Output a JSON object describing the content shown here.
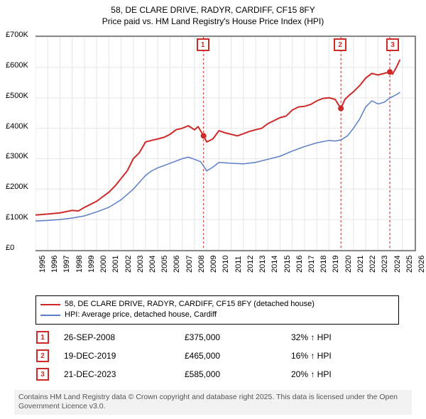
{
  "title_line1": "58, DE CLARE DRIVE, RADYR, CARDIFF, CF15 8FY",
  "title_line2": "Price paid vs. HM Land Registry's House Price Index (HPI)",
  "chart": {
    "type": "line",
    "background_color": "#ffffff",
    "grid_color": "#e6e6e6",
    "axis_color": "#888888",
    "font_size_axis": 11,
    "xlim": [
      1995,
      2026
    ],
    "ylim": [
      0,
      700000
    ],
    "y_ticks": [
      0,
      100000,
      200000,
      300000,
      400000,
      500000,
      600000,
      700000
    ],
    "y_tick_labels": [
      "£0",
      "£100K",
      "£200K",
      "£300K",
      "£400K",
      "£500K",
      "£600K",
      "£700K"
    ],
    "x_ticks": [
      1995,
      1996,
      1997,
      1998,
      1999,
      2000,
      2001,
      2002,
      2003,
      2004,
      2005,
      2006,
      2007,
      2008,
      2009,
      2010,
      2011,
      2012,
      2013,
      2014,
      2015,
      2016,
      2017,
      2018,
      2019,
      2020,
      2021,
      2022,
      2023,
      2024,
      2025,
      2026
    ],
    "event_line_color": "#cf2a2a",
    "event_line_dash": "3,3",
    "events": [
      {
        "id": "1",
        "x": 2008.74,
        "label_offset_x": -2
      },
      {
        "id": "2",
        "x": 2019.97,
        "label_offset_x": -2
      },
      {
        "id": "3",
        "x": 2023.97,
        "label_offset_x": 3
      }
    ],
    "series": [
      {
        "name": "property",
        "label": "58, DE CLARE DRIVE, RADYR, CARDIFF, CF15 8FY (detached house)",
        "color": "#cf2a2a",
        "line_width": 2,
        "points": [
          [
            1995,
            115000
          ],
          [
            1996,
            118000
          ],
          [
            1997,
            122000
          ],
          [
            1998,
            130000
          ],
          [
            1998.5,
            128000
          ],
          [
            1999,
            140000
          ],
          [
            2000,
            160000
          ],
          [
            2000.5,
            175000
          ],
          [
            2001,
            190000
          ],
          [
            2001.5,
            210000
          ],
          [
            2002,
            235000
          ],
          [
            2002.5,
            260000
          ],
          [
            2003,
            300000
          ],
          [
            2003.5,
            320000
          ],
          [
            2004,
            355000
          ],
          [
            2004.5,
            360000
          ],
          [
            2005,
            365000
          ],
          [
            2005.5,
            370000
          ],
          [
            2006,
            380000
          ],
          [
            2006.5,
            395000
          ],
          [
            2007,
            400000
          ],
          [
            2007.5,
            408000
          ],
          [
            2008,
            395000
          ],
          [
            2008.3,
            405000
          ],
          [
            2008.74,
            375000
          ],
          [
            2009,
            355000
          ],
          [
            2009.5,
            365000
          ],
          [
            2010,
            392000
          ],
          [
            2010.5,
            385000
          ],
          [
            2011,
            380000
          ],
          [
            2011.5,
            375000
          ],
          [
            2012,
            382000
          ],
          [
            2012.5,
            390000
          ],
          [
            2013,
            395000
          ],
          [
            2013.5,
            400000
          ],
          [
            2014,
            415000
          ],
          [
            2014.5,
            425000
          ],
          [
            2015,
            435000
          ],
          [
            2015.5,
            440000
          ],
          [
            2016,
            460000
          ],
          [
            2016.5,
            470000
          ],
          [
            2017,
            472000
          ],
          [
            2017.5,
            478000
          ],
          [
            2018,
            490000
          ],
          [
            2018.5,
            498000
          ],
          [
            2019,
            500000
          ],
          [
            2019.5,
            495000
          ],
          [
            2019.97,
            465000
          ],
          [
            2020.3,
            495000
          ],
          [
            2020.7,
            510000
          ],
          [
            2021,
            520000
          ],
          [
            2021.5,
            540000
          ],
          [
            2022,
            565000
          ],
          [
            2022.5,
            580000
          ],
          [
            2023,
            575000
          ],
          [
            2023.5,
            580000
          ],
          [
            2023.97,
            585000
          ],
          [
            2024.2,
            578000
          ],
          [
            2024.5,
            600000
          ],
          [
            2024.8,
            625000
          ]
        ]
      },
      {
        "name": "hpi",
        "label": "HPI: Average price, detached house, Cardiff",
        "color": "#5b7fc7",
        "line_width": 1.5,
        "points": [
          [
            1995,
            95000
          ],
          [
            1996,
            97000
          ],
          [
            1997,
            100000
          ],
          [
            1998,
            105000
          ],
          [
            1999,
            112000
          ],
          [
            2000,
            125000
          ],
          [
            2001,
            140000
          ],
          [
            2002,
            165000
          ],
          [
            2003,
            200000
          ],
          [
            2004,
            245000
          ],
          [
            2004.5,
            260000
          ],
          [
            2005,
            270000
          ],
          [
            2006,
            285000
          ],
          [
            2007,
            300000
          ],
          [
            2007.5,
            305000
          ],
          [
            2008,
            298000
          ],
          [
            2008.5,
            290000
          ],
          [
            2009,
            260000
          ],
          [
            2009.5,
            272000
          ],
          [
            2010,
            288000
          ],
          [
            2011,
            285000
          ],
          [
            2012,
            283000
          ],
          [
            2013,
            288000
          ],
          [
            2014,
            298000
          ],
          [
            2015,
            308000
          ],
          [
            2016,
            325000
          ],
          [
            2017,
            340000
          ],
          [
            2018,
            352000
          ],
          [
            2019,
            360000
          ],
          [
            2019.5,
            358000
          ],
          [
            2020,
            362000
          ],
          [
            2020.5,
            375000
          ],
          [
            2021,
            400000
          ],
          [
            2021.5,
            430000
          ],
          [
            2022,
            470000
          ],
          [
            2022.5,
            490000
          ],
          [
            2023,
            480000
          ],
          [
            2023.5,
            485000
          ],
          [
            2024,
            500000
          ],
          [
            2024.5,
            510000
          ],
          [
            2024.8,
            518000
          ]
        ]
      }
    ],
    "sale_markers": [
      {
        "x": 2008.74,
        "y": 375000,
        "color": "#cf2a2a"
      },
      {
        "x": 2019.97,
        "y": 465000,
        "color": "#cf2a2a"
      },
      {
        "x": 2023.97,
        "y": 585000,
        "color": "#cf2a2a"
      }
    ]
  },
  "legend": {
    "items": [
      {
        "color": "#cf2a2a",
        "width": 2
      },
      {
        "color": "#5b7fc7",
        "width": 2
      }
    ]
  },
  "table": {
    "marker_border_color": "#cf2a2a",
    "marker_text_color": "#cf2a2a",
    "rows": [
      {
        "id": "1",
        "date": "26-SEP-2008",
        "price": "£375,000",
        "pct": "32% ↑ HPI"
      },
      {
        "id": "2",
        "date": "19-DEC-2019",
        "price": "£465,000",
        "pct": "16% ↑ HPI"
      },
      {
        "id": "3",
        "date": "21-DEC-2023",
        "price": "£585,000",
        "pct": "20% ↑ HPI"
      }
    ]
  },
  "attribution": "Contains HM Land Registry data © Crown copyright and database right 2025. This data is licensed under the Open Government Licence v3.0."
}
